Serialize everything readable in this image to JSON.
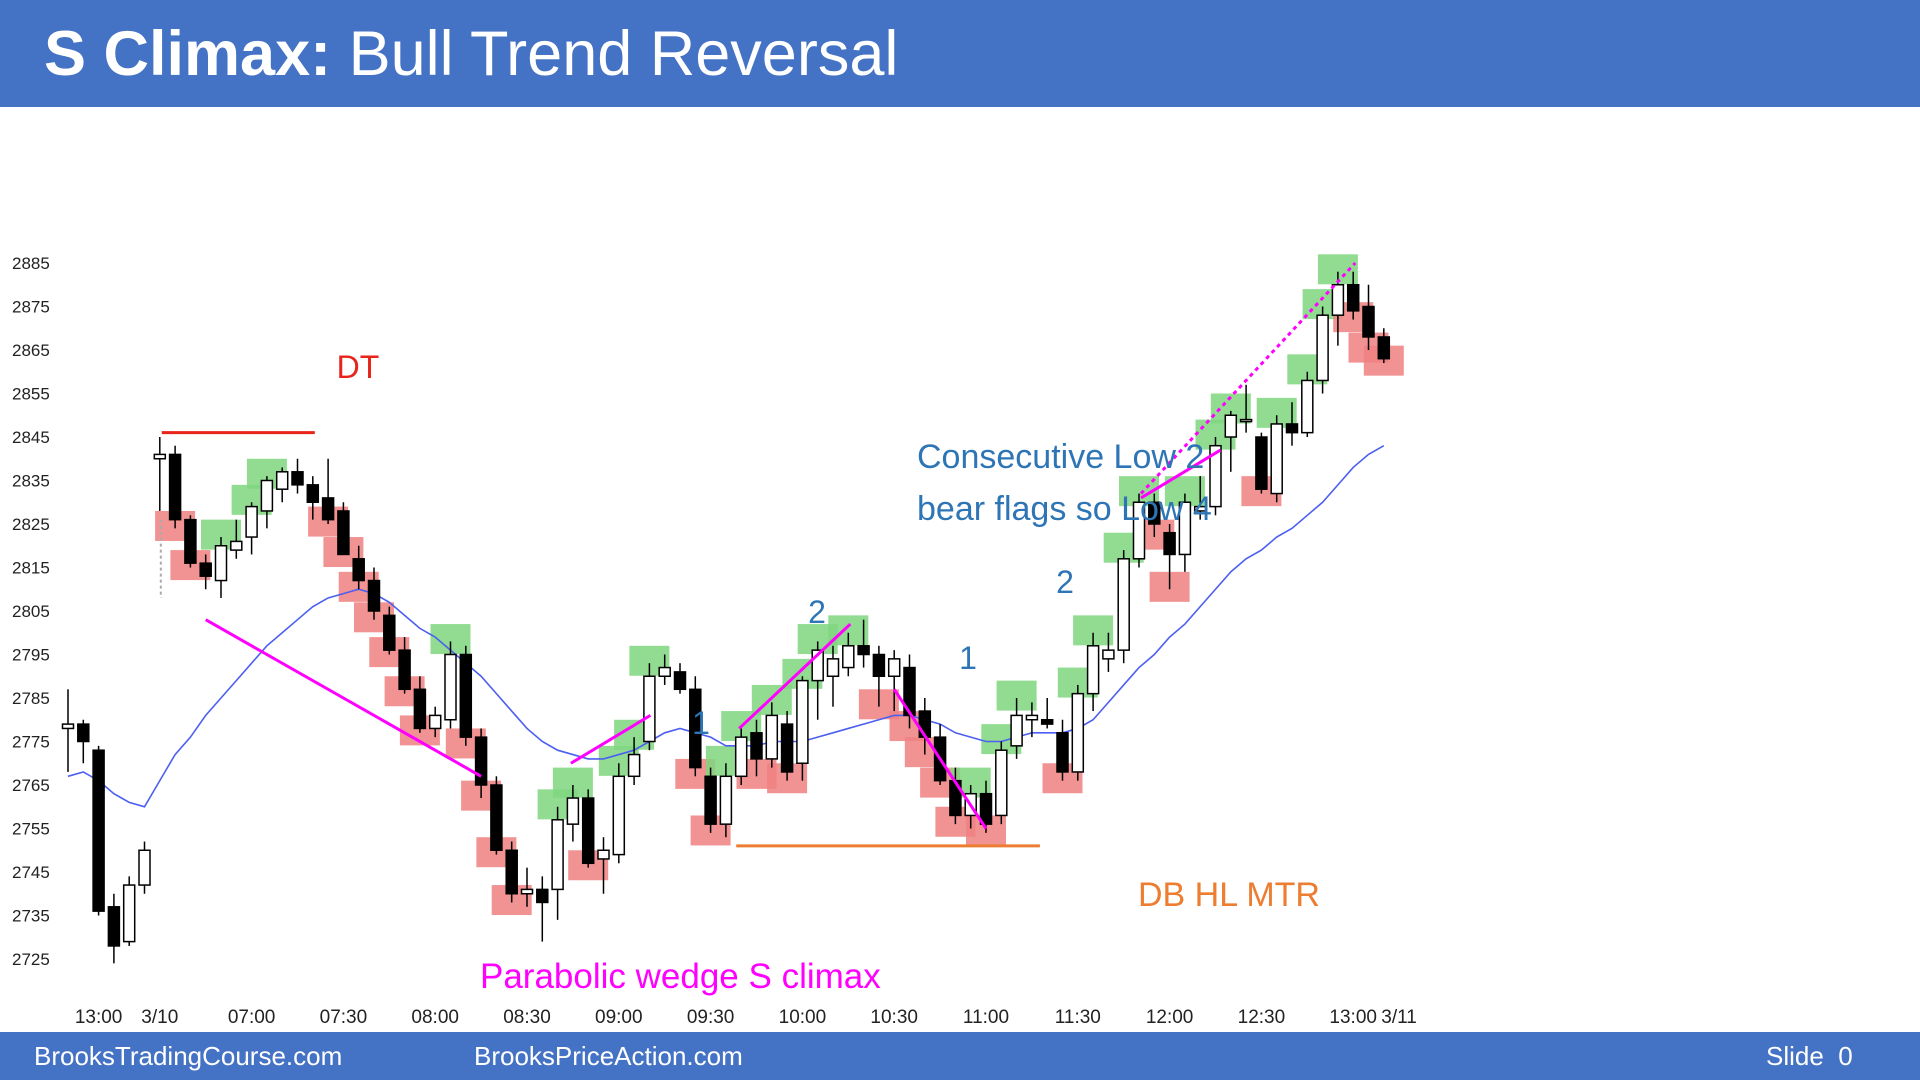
{
  "slide": {
    "title_bold": "S Climax:",
    "title_rest": " Bull Trend Reversal"
  },
  "footer": {
    "left": "BrooksTradingCourse.com",
    "center": "BrooksPriceAction.com",
    "right": "Slide  0"
  },
  "colors": {
    "header": "#4472c4",
    "ema": "#4c5ff0",
    "bull_box": "#7fd67f",
    "bear_box": "#f08080",
    "magenta": "#ff00ff",
    "dt_line": "#e8231a",
    "db_line": "#ed7d31",
    "label_blue": "#2e75b6"
  },
  "chart_data": {
    "type": "candlestick",
    "ylim": [
      2720,
      2890
    ],
    "yticks": [
      2725,
      2735,
      2745,
      2755,
      2765,
      2775,
      2785,
      2795,
      2805,
      2815,
      2825,
      2835,
      2845,
      2855,
      2865,
      2875,
      2885
    ],
    "xticks": [
      {
        "bar": 2,
        "label": "13:00"
      },
      {
        "bar": 6,
        "label": "3/10"
      },
      {
        "bar": 12,
        "label": "07:00"
      },
      {
        "bar": 18,
        "label": "07:30"
      },
      {
        "bar": 24,
        "label": "08:00"
      },
      {
        "bar": 30,
        "label": "08:30"
      },
      {
        "bar": 36,
        "label": "09:00"
      },
      {
        "bar": 42,
        "label": "09:30"
      },
      {
        "bar": 48,
        "label": "10:00"
      },
      {
        "bar": 54,
        "label": "10:30"
      },
      {
        "bar": 60,
        "label": "11:00"
      },
      {
        "bar": 66,
        "label": "11:30"
      },
      {
        "bar": 72,
        "label": "12:00"
      },
      {
        "bar": 78,
        "label": "12:30"
      },
      {
        "bar": 84,
        "label": "13:00"
      },
      {
        "bar": 87,
        "label": "3/11"
      }
    ],
    "candles": [
      {
        "o": 2778,
        "h": 2787,
        "l": 2768,
        "c": 2779
      },
      {
        "o": 2779,
        "h": 2780,
        "l": 2770,
        "c": 2775
      },
      {
        "o": 2773,
        "h": 2774,
        "l": 2735,
        "c": 2736
      },
      {
        "o": 2737,
        "h": 2740,
        "l": 2724,
        "c": 2728
      },
      {
        "o": 2729,
        "h": 2744,
        "l": 2728,
        "c": 2742
      },
      {
        "o": 2742,
        "h": 2752,
        "l": 2740,
        "c": 2750
      },
      {
        "o": 2840,
        "h": 2845,
        "l": 2828,
        "c": 2841
      },
      {
        "o": 2841,
        "h": 2843,
        "l": 2824,
        "c": 2826
      },
      {
        "o": 2826,
        "h": 2827,
        "l": 2815,
        "c": 2816
      },
      {
        "o": 2816,
        "h": 2818,
        "l": 2810,
        "c": 2813
      },
      {
        "o": 2812,
        "h": 2822,
        "l": 2808,
        "c": 2820
      },
      {
        "o": 2819,
        "h": 2826,
        "l": 2817,
        "c": 2821
      },
      {
        "o": 2822,
        "h": 2830,
        "l": 2818,
        "c": 2829
      },
      {
        "o": 2828,
        "h": 2836,
        "l": 2824,
        "c": 2835
      },
      {
        "o": 2833,
        "h": 2838,
        "l": 2830,
        "c": 2837
      },
      {
        "o": 2837,
        "h": 2840,
        "l": 2832,
        "c": 2834
      },
      {
        "o": 2834,
        "h": 2836,
        "l": 2826,
        "c": 2830
      },
      {
        "o": 2831,
        "h": 2840,
        "l": 2825,
        "c": 2826
      },
      {
        "o": 2828,
        "h": 2830,
        "l": 2818,
        "c": 2818
      },
      {
        "o": 2817,
        "h": 2820,
        "l": 2810,
        "c": 2812
      },
      {
        "o": 2812,
        "h": 2815,
        "l": 2803,
        "c": 2805
      },
      {
        "o": 2804,
        "h": 2806,
        "l": 2795,
        "c": 2796
      },
      {
        "o": 2796,
        "h": 2799,
        "l": 2786,
        "c": 2787
      },
      {
        "o": 2787,
        "h": 2790,
        "l": 2777,
        "c": 2778
      },
      {
        "o": 2778,
        "h": 2783,
        "l": 2776,
        "c": 2781
      },
      {
        "o": 2780,
        "h": 2798,
        "l": 2778,
        "c": 2795
      },
      {
        "o": 2795,
        "h": 2797,
        "l": 2774,
        "c": 2776
      },
      {
        "o": 2776,
        "h": 2778,
        "l": 2762,
        "c": 2765
      },
      {
        "o": 2765,
        "h": 2767,
        "l": 2749,
        "c": 2750
      },
      {
        "o": 2750,
        "h": 2752,
        "l": 2738,
        "c": 2740
      },
      {
        "o": 2740,
        "h": 2746,
        "l": 2737,
        "c": 2741
      },
      {
        "o": 2741,
        "h": 2744,
        "l": 2729,
        "c": 2738
      },
      {
        "o": 2741,
        "h": 2760,
        "l": 2734,
        "c": 2757
      },
      {
        "o": 2756,
        "h": 2765,
        "l": 2752,
        "c": 2762
      },
      {
        "o": 2762,
        "h": 2764,
        "l": 2746,
        "c": 2747
      },
      {
        "o": 2748,
        "h": 2753,
        "l": 2740,
        "c": 2750
      },
      {
        "o": 2749,
        "h": 2770,
        "l": 2747,
        "c": 2767
      },
      {
        "o": 2767,
        "h": 2776,
        "l": 2765,
        "c": 2772
      },
      {
        "o": 2775,
        "h": 2793,
        "l": 2773,
        "c": 2790
      },
      {
        "o": 2790,
        "h": 2795,
        "l": 2788,
        "c": 2792
      },
      {
        "o": 2791,
        "h": 2793,
        "l": 2786,
        "c": 2787
      },
      {
        "o": 2787,
        "h": 2790,
        "l": 2767,
        "c": 2769
      },
      {
        "o": 2767,
        "h": 2769,
        "l": 2754,
        "c": 2756
      },
      {
        "o": 2756,
        "h": 2770,
        "l": 2753,
        "c": 2767
      },
      {
        "o": 2767,
        "h": 2778,
        "l": 2765,
        "c": 2776
      },
      {
        "o": 2777,
        "h": 2780,
        "l": 2767,
        "c": 2771
      },
      {
        "o": 2771,
        "h": 2784,
        "l": 2769,
        "c": 2781
      },
      {
        "o": 2779,
        "h": 2782,
        "l": 2766,
        "c": 2768
      },
      {
        "o": 2770,
        "h": 2790,
        "l": 2766,
        "c": 2789
      },
      {
        "o": 2789,
        "h": 2798,
        "l": 2780,
        "c": 2796
      },
      {
        "o": 2790,
        "h": 2797,
        "l": 2783,
        "c": 2794
      },
      {
        "o": 2792,
        "h": 2800,
        "l": 2790,
        "c": 2797
      },
      {
        "o": 2797,
        "h": 2803,
        "l": 2792,
        "c": 2795
      },
      {
        "o": 2795,
        "h": 2797,
        "l": 2783,
        "c": 2790
      },
      {
        "o": 2790,
        "h": 2796,
        "l": 2782,
        "c": 2794
      },
      {
        "o": 2792,
        "h": 2795,
        "l": 2778,
        "c": 2781
      },
      {
        "o": 2782,
        "h": 2785,
        "l": 2772,
        "c": 2776
      },
      {
        "o": 2776,
        "h": 2779,
        "l": 2765,
        "c": 2766
      },
      {
        "o": 2766,
        "h": 2769,
        "l": 2756,
        "c": 2758
      },
      {
        "o": 2758,
        "h": 2765,
        "l": 2755,
        "c": 2763
      },
      {
        "o": 2763,
        "h": 2766,
        "l": 2754,
        "c": 2756
      },
      {
        "o": 2758,
        "h": 2775,
        "l": 2756,
        "c": 2773
      },
      {
        "o": 2774,
        "h": 2785,
        "l": 2771,
        "c": 2781
      },
      {
        "o": 2780,
        "h": 2784,
        "l": 2776,
        "c": 2781
      },
      {
        "o": 2780,
        "h": 2785,
        "l": 2778,
        "c": 2779
      },
      {
        "o": 2777,
        "h": 2780,
        "l": 2766,
        "c": 2768
      },
      {
        "o": 2768,
        "h": 2788,
        "l": 2766,
        "c": 2786
      },
      {
        "o": 2786,
        "h": 2800,
        "l": 2782,
        "c": 2797
      },
      {
        "o": 2794,
        "h": 2800,
        "l": 2791,
        "c": 2796
      },
      {
        "o": 2796,
        "h": 2819,
        "l": 2793,
        "c": 2817
      },
      {
        "o": 2817,
        "h": 2832,
        "l": 2815,
        "c": 2830
      },
      {
        "o": 2830,
        "h": 2832,
        "l": 2822,
        "c": 2825
      },
      {
        "o": 2823,
        "h": 2825,
        "l": 2810,
        "c": 2818
      },
      {
        "o": 2818,
        "h": 2832,
        "l": 2814,
        "c": 2830
      },
      {
        "o": 2828,
        "h": 2836,
        "l": 2826,
        "c": 2829
      },
      {
        "o": 2829,
        "h": 2845,
        "l": 2827,
        "c": 2843
      },
      {
        "o": 2845,
        "h": 2851,
        "l": 2837,
        "c": 2850
      },
      {
        "o": 2849,
        "h": 2857,
        "l": 2846,
        "c": 2849
      },
      {
        "o": 2845,
        "h": 2846,
        "l": 2832,
        "c": 2833
      },
      {
        "o": 2832,
        "h": 2850,
        "l": 2830,
        "c": 2848
      },
      {
        "o": 2848,
        "h": 2853,
        "l": 2843,
        "c": 2846
      },
      {
        "o": 2846,
        "h": 2860,
        "l": 2845,
        "c": 2858
      },
      {
        "o": 2858,
        "h": 2875,
        "l": 2855,
        "c": 2873
      },
      {
        "o": 2873,
        "h": 2883,
        "l": 2866,
        "c": 2880
      },
      {
        "o": 2880,
        "h": 2883,
        "l": 2872,
        "c": 2874
      },
      {
        "o": 2875,
        "h": 2880,
        "l": 2865,
        "c": 2868
      },
      {
        "o": 2868,
        "h": 2870,
        "l": 2862,
        "c": 2863
      }
    ],
    "ema": [
      2767,
      2768,
      2766,
      2763,
      2761,
      2760,
      2766,
      2772,
      2776,
      2781,
      2785,
      2789,
      2793,
      2797,
      2800,
      2803,
      2806,
      2808,
      2809,
      2810,
      2809,
      2807,
      2804,
      2801,
      2799,
      2796,
      2793,
      2790,
      2786,
      2782,
      2778,
      2775,
      2773,
      2772,
      2771,
      2771,
      2772,
      2773,
      2775,
      2777,
      2778,
      2777,
      2776,
      2774,
      2774,
      2774,
      2775,
      2775,
      2775,
      2776,
      2777,
      2778,
      2779,
      2780,
      2781,
      2781,
      2780,
      2779,
      2777,
      2776,
      2775,
      2775,
      2776,
      2777,
      2777,
      2777,
      2778,
      2780,
      2784,
      2788,
      2792,
      2795,
      2799,
      2802,
      2806,
      2810,
      2814,
      2817,
      2819,
      2822,
      2824,
      2827,
      2830,
      2834,
      2838,
      2841,
      2843
    ],
    "annotations": [
      "DT",
      "1",
      "2",
      "1",
      "2",
      "Consecutive Low 2",
      "bear flags so Low 4",
      "Parabolic wedge S climax",
      "DB HL MTR"
    ]
  }
}
